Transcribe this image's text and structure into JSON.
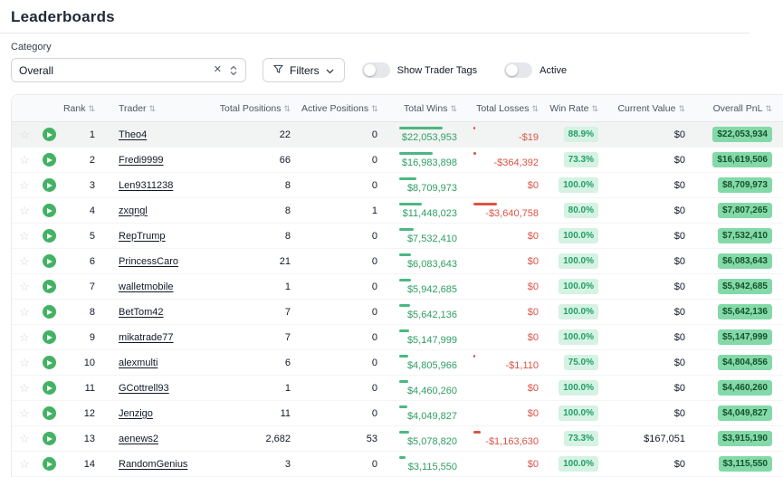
{
  "page": {
    "title": "Leaderboards"
  },
  "controls": {
    "category_label": "Category",
    "category_value": "Overall",
    "filters_label": "Filters",
    "show_trader_tags_label": "Show Trader Tags",
    "active_label": "Active",
    "show_trader_tags_on": false,
    "active_on": false
  },
  "icons": {
    "star": "☆",
    "clear": "✕",
    "sort": "⇅"
  },
  "colors": {
    "accent_green": "#4cb782",
    "accent_green_text": "#2f9e63",
    "loss_red": "#dd5246",
    "winrate_badge_bg": "#d5f2e3",
    "winrate_badge_text": "#21a066",
    "pnl_badge_bg": "#84d9a9",
    "pnl_badge_text": "#14532d",
    "icon_green": "#43b264"
  },
  "table": {
    "columns": [
      {
        "label": "Rank",
        "align": "right"
      },
      {
        "label": "Trader",
        "align": "left"
      },
      {
        "label": "Total Positions",
        "align": "right"
      },
      {
        "label": "Active Positions",
        "align": "right"
      },
      {
        "label": "Total Wins",
        "align": "right"
      },
      {
        "label": "Total Losses",
        "align": "right"
      },
      {
        "label": "Win Rate",
        "align": "right"
      },
      {
        "label": "Current Value",
        "align": "right"
      },
      {
        "label": "Overall PnL",
        "align": "right"
      }
    ],
    "rows": [
      {
        "rank": "1",
        "trader": "Theo4",
        "total_positions": "22",
        "active_positions": "0",
        "total_wins": "$22,053,953",
        "total_losses": "-$19",
        "win_rate": "88.9%",
        "current_value": "$0",
        "overall_pnl": "$22,053,934",
        "wins_bar_pct": 100,
        "losses_bar_pct": 1,
        "highlighted": true
      },
      {
        "rank": "2",
        "trader": "Fredi9999",
        "total_positions": "66",
        "active_positions": "0",
        "total_wins": "$16,983,898",
        "total_losses": "-$364,392",
        "win_rate": "73.3%",
        "current_value": "$0",
        "overall_pnl": "$16,619,506",
        "wins_bar_pct": 77,
        "losses_bar_pct": 10,
        "highlighted": false
      },
      {
        "rank": "3",
        "trader": "Len9311238",
        "total_positions": "8",
        "active_positions": "0",
        "total_wins": "$8,709,973",
        "total_losses": "$0",
        "win_rate": "100.0%",
        "current_value": "$0",
        "overall_pnl": "$8,709,973",
        "wins_bar_pct": 39.5,
        "losses_bar_pct": 0,
        "highlighted": false
      },
      {
        "rank": "4",
        "trader": "zxqngl",
        "total_positions": "8",
        "active_positions": "1",
        "total_wins": "$11,448,023",
        "total_losses": "-$3,640,758",
        "win_rate": "80.0%",
        "current_value": "$0",
        "overall_pnl": "$7,807,265",
        "wins_bar_pct": 51.9,
        "losses_bar_pct": 100,
        "highlighted": false
      },
      {
        "rank": "5",
        "trader": "RepTrump",
        "total_positions": "8",
        "active_positions": "0",
        "total_wins": "$7,532,410",
        "total_losses": "$0",
        "win_rate": "100.0%",
        "current_value": "$0",
        "overall_pnl": "$7,532,410",
        "wins_bar_pct": 34.2,
        "losses_bar_pct": 0,
        "highlighted": false
      },
      {
        "rank": "6",
        "trader": "PrincessCaro",
        "total_positions": "21",
        "active_positions": "0",
        "total_wins": "$6,083,643",
        "total_losses": "$0",
        "win_rate": "100.0%",
        "current_value": "$0",
        "overall_pnl": "$6,083,643",
        "wins_bar_pct": 27.6,
        "losses_bar_pct": 0,
        "highlighted": false
      },
      {
        "rank": "7",
        "trader": "walletmobile",
        "total_positions": "1",
        "active_positions": "0",
        "total_wins": "$5,942,685",
        "total_losses": "$0",
        "win_rate": "100.0%",
        "current_value": "$0",
        "overall_pnl": "$5,942,685",
        "wins_bar_pct": 26.9,
        "losses_bar_pct": 0,
        "highlighted": false
      },
      {
        "rank": "8",
        "trader": "BetTom42",
        "total_positions": "7",
        "active_positions": "0",
        "total_wins": "$5,642,136",
        "total_losses": "$0",
        "win_rate": "100.0%",
        "current_value": "$0",
        "overall_pnl": "$5,642,136",
        "wins_bar_pct": 25.6,
        "losses_bar_pct": 0,
        "highlighted": false
      },
      {
        "rank": "9",
        "trader": "mikatrade77",
        "total_positions": "7",
        "active_positions": "0",
        "total_wins": "$5,147,999",
        "total_losses": "$0",
        "win_rate": "100.0%",
        "current_value": "$0",
        "overall_pnl": "$5,147,999",
        "wins_bar_pct": 23.3,
        "losses_bar_pct": 0,
        "highlighted": false
      },
      {
        "rank": "10",
        "trader": "alexmulti",
        "total_positions": "6",
        "active_positions": "0",
        "total_wins": "$4,805,966",
        "total_losses": "-$1,110",
        "win_rate": "75.0%",
        "current_value": "$0",
        "overall_pnl": "$4,804,856",
        "wins_bar_pct": 21.8,
        "losses_bar_pct": 1,
        "highlighted": false
      },
      {
        "rank": "11",
        "trader": "GCottrell93",
        "total_positions": "1",
        "active_positions": "0",
        "total_wins": "$4,460,260",
        "total_losses": "$0",
        "win_rate": "100.0%",
        "current_value": "$0",
        "overall_pnl": "$4,460,260",
        "wins_bar_pct": 20.2,
        "losses_bar_pct": 0,
        "highlighted": false
      },
      {
        "rank": "12",
        "trader": "Jenzigo",
        "total_positions": "11",
        "active_positions": "0",
        "total_wins": "$4,049,827",
        "total_losses": "$0",
        "win_rate": "100.0%",
        "current_value": "$0",
        "overall_pnl": "$4,049,827",
        "wins_bar_pct": 18.4,
        "losses_bar_pct": 0,
        "highlighted": false
      },
      {
        "rank": "13",
        "trader": "aenews2",
        "total_positions": "2,682",
        "active_positions": "53",
        "total_wins": "$5,078,820",
        "total_losses": "-$1,163,630",
        "win_rate": "73.3%",
        "current_value": "$167,051",
        "overall_pnl": "$3,915,190",
        "wins_bar_pct": 23,
        "losses_bar_pct": 32,
        "highlighted": false
      },
      {
        "rank": "14",
        "trader": "RandomGenius",
        "total_positions": "3",
        "active_positions": "0",
        "total_wins": "$3,115,550",
        "total_losses": "$0",
        "win_rate": "100.0%",
        "current_value": "$0",
        "overall_pnl": "$3,115,550",
        "wins_bar_pct": 14.1,
        "losses_bar_pct": 0,
        "highlighted": false
      }
    ]
  }
}
